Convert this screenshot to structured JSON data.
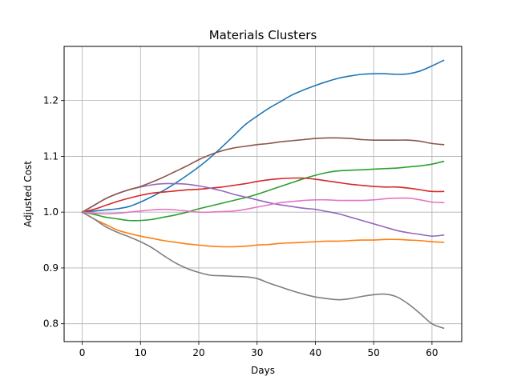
{
  "chart_data": {
    "type": "line",
    "title": "Materials Clusters",
    "xlabel": "Days",
    "ylabel": "Adjusted Cost",
    "xlim": [
      -3.1,
      65.1
    ],
    "ylim": [
      0.768,
      1.297
    ],
    "xticks": [
      0,
      10,
      20,
      30,
      40,
      50,
      60
    ],
    "yticks": [
      0.8,
      0.9,
      1.0,
      1.1,
      1.2
    ],
    "ytick_labels": [
      "0.8",
      "0.9",
      "1.0",
      "1.1",
      "1.2"
    ],
    "grid": true,
    "legend": "none",
    "x": [
      0,
      2,
      4,
      6,
      8,
      10,
      12,
      14,
      16,
      18,
      20,
      22,
      24,
      26,
      28,
      30,
      32,
      34,
      36,
      38,
      40,
      42,
      44,
      46,
      48,
      50,
      52,
      54,
      56,
      58,
      60,
      62
    ],
    "series": [
      {
        "color": "#1f77b4",
        "values": [
          1.0,
          1.002,
          1.004,
          1.006,
          1.01,
          1.018,
          1.028,
          1.039,
          1.052,
          1.066,
          1.081,
          1.098,
          1.117,
          1.137,
          1.157,
          1.172,
          1.186,
          1.198,
          1.21,
          1.219,
          1.227,
          1.234,
          1.24,
          1.244,
          1.247,
          1.248,
          1.248,
          1.247,
          1.248,
          1.253,
          1.262,
          1.272
        ]
      },
      {
        "color": "#ff7f0e",
        "values": [
          1.0,
          0.988,
          0.978,
          0.968,
          0.962,
          0.957,
          0.953,
          0.949,
          0.946,
          0.943,
          0.941,
          0.939,
          0.938,
          0.938,
          0.939,
          0.941,
          0.942,
          0.944,
          0.945,
          0.946,
          0.947,
          0.948,
          0.948,
          0.949,
          0.95,
          0.95,
          0.951,
          0.951,
          0.95,
          0.949,
          0.947,
          0.946
        ]
      },
      {
        "color": "#2ca02c",
        "values": [
          1.0,
          0.996,
          0.991,
          0.988,
          0.985,
          0.985,
          0.987,
          0.991,
          0.995,
          1.0,
          1.006,
          1.011,
          1.016,
          1.021,
          1.026,
          1.032,
          1.039,
          1.046,
          1.053,
          1.06,
          1.066,
          1.071,
          1.074,
          1.075,
          1.076,
          1.077,
          1.078,
          1.079,
          1.081,
          1.083,
          1.086,
          1.091
        ]
      },
      {
        "color": "#d62728",
        "values": [
          1.0,
          1.005,
          1.012,
          1.019,
          1.025,
          1.03,
          1.034,
          1.036,
          1.038,
          1.04,
          1.041,
          1.043,
          1.045,
          1.048,
          1.051,
          1.055,
          1.058,
          1.06,
          1.061,
          1.061,
          1.059,
          1.056,
          1.053,
          1.05,
          1.048,
          1.046,
          1.045,
          1.045,
          1.043,
          1.04,
          1.037,
          1.037
        ]
      },
      {
        "color": "#9467bd",
        "values": [
          1.0,
          1.012,
          1.024,
          1.033,
          1.04,
          1.045,
          1.049,
          1.051,
          1.051,
          1.05,
          1.047,
          1.043,
          1.038,
          1.032,
          1.027,
          1.022,
          1.017,
          1.013,
          1.01,
          1.007,
          1.005,
          1.001,
          0.997,
          0.991,
          0.985,
          0.979,
          0.973,
          0.967,
          0.963,
          0.96,
          0.957,
          0.959
        ]
      },
      {
        "color": "#8c564b",
        "values": [
          1.0,
          1.012,
          1.024,
          1.033,
          1.04,
          1.046,
          1.054,
          1.063,
          1.073,
          1.083,
          1.094,
          1.103,
          1.11,
          1.115,
          1.118,
          1.121,
          1.123,
          1.126,
          1.128,
          1.13,
          1.132,
          1.133,
          1.133,
          1.132,
          1.13,
          1.129,
          1.129,
          1.129,
          1.129,
          1.127,
          1.123,
          1.121
        ]
      },
      {
        "color": "#e377c2",
        "values": [
          1.0,
          0.998,
          0.997,
          0.998,
          1.0,
          1.002,
          1.004,
          1.005,
          1.004,
          1.002,
          1.0,
          1.0,
          1.001,
          1.002,
          1.005,
          1.009,
          1.013,
          1.017,
          1.019,
          1.021,
          1.022,
          1.022,
          1.021,
          1.021,
          1.021,
          1.022,
          1.024,
          1.025,
          1.025,
          1.022,
          1.018,
          1.017
        ]
      },
      {
        "color": "#7f7f7f",
        "values": [
          1.0,
          0.988,
          0.974,
          0.964,
          0.956,
          0.947,
          0.936,
          0.922,
          0.909,
          0.899,
          0.892,
          0.887,
          0.886,
          0.885,
          0.884,
          0.881,
          0.873,
          0.866,
          0.859,
          0.853,
          0.848,
          0.845,
          0.843,
          0.845,
          0.849,
          0.852,
          0.853,
          0.848,
          0.835,
          0.818,
          0.8,
          0.792
        ]
      }
    ]
  }
}
